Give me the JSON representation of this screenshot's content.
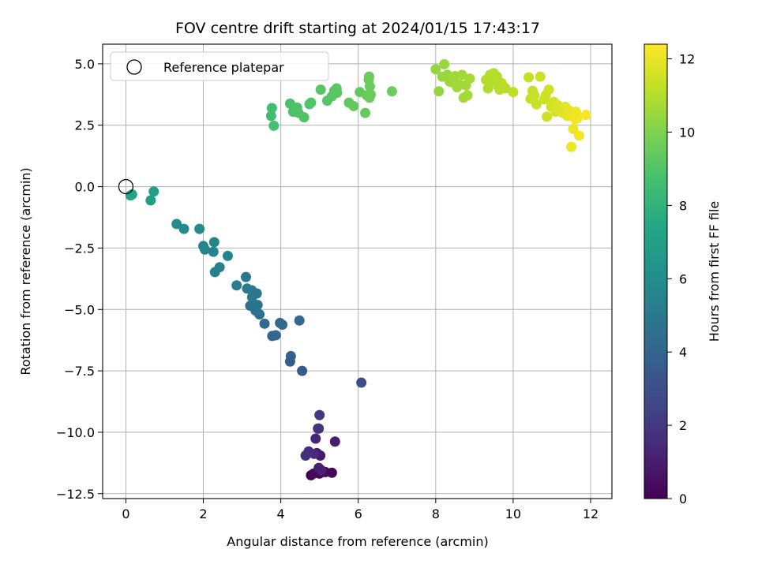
{
  "chart_data": {
    "type": "scatter",
    "title": "FOV centre drift starting at 2024/01/15 17:43:17",
    "xlabel": "Angular distance from reference (arcmin)",
    "ylabel": "Rotation from reference (arcmin)",
    "xlim": [
      -0.6,
      12.55
    ],
    "ylim": [
      -12.7,
      5.8
    ],
    "xticks": [
      0,
      2,
      4,
      6,
      8,
      10,
      12
    ],
    "xtick_labels": [
      "0",
      "2",
      "4",
      "6",
      "8",
      "10",
      "12"
    ],
    "yticks": [
      5.0,
      2.5,
      0.0,
      -2.5,
      -5.0,
      -7.5,
      -10.0,
      -12.5
    ],
    "ytick_labels": [
      "5.0",
      "2.5",
      "0.0",
      "−2.5",
      "−5.0",
      "−7.5",
      "−10.0",
      "−12.5"
    ],
    "grid": true,
    "legend": {
      "placement": "top-left",
      "entries": [
        "Reference platepar"
      ]
    },
    "reference_point": {
      "x": 0,
      "y": 0
    },
    "colorbar": {
      "label": "Hours from first FF file",
      "colormap": "viridis",
      "range": [
        0,
        12.4
      ],
      "ticks": [
        0,
        2,
        4,
        6,
        8,
        10,
        12
      ],
      "tick_labels": [
        "0",
        "2",
        "4",
        "6",
        "8",
        "10",
        "12"
      ]
    },
    "series": [
      {
        "x": [
          4.78,
          5.0,
          5.15,
          5.32,
          4.85,
          4.93,
          5.02,
          4.98,
          5.05,
          4.96,
          5.4,
          4.9,
          4.86,
          4.72,
          4.64,
          5.0,
          4.98,
          6.08,
          4.55,
          4.26,
          4.24,
          4.48,
          3.98,
          3.87,
          3.78,
          4.04,
          3.58,
          3.45,
          3.35,
          3.21,
          3.3,
          3.26,
          3.38,
          3.4,
          3.25,
          3.1,
          3.13,
          2.86,
          2.42,
          2.3,
          2.26,
          2.63,
          2.0,
          2.04,
          2.28,
          1.9,
          1.5,
          1.31,
          0.64,
          0.72,
          0.16,
          0.12,
          3.75,
          3.77,
          3.82,
          4.24,
          4.32,
          4.38,
          4.42,
          4.46,
          4.6,
          4.74,
          4.78,
          5.03,
          5.2,
          5.32,
          5.38,
          5.44,
          5.45,
          5.76,
          5.88,
          6.04,
          6.18,
          6.22,
          6.27,
          6.28,
          6.32,
          6.3,
          6.29,
          6.87,
          8.0,
          8.08,
          8.17,
          8.22,
          8.3,
          8.36,
          8.42,
          8.5,
          8.55,
          8.62,
          8.68,
          8.72,
          8.78,
          8.82,
          8.88,
          9.3,
          9.35,
          9.4,
          9.45,
          9.5,
          9.58,
          9.62,
          9.65,
          9.7,
          9.75,
          9.8,
          9.55,
          10.0,
          10.4,
          10.45,
          10.5,
          10.55,
          10.6,
          10.7,
          10.8,
          10.87,
          10.92,
          10.98,
          10.84,
          11.05,
          11.1,
          11.15,
          11.22,
          11.28,
          11.35,
          11.4,
          11.45,
          11.5,
          11.55,
          11.62,
          11.65,
          11.7,
          11.5,
          11.6,
          11.58,
          11.88
        ],
        "y": [
          -11.75,
          -11.68,
          -11.62,
          -11.65,
          -11.68,
          -10.85,
          -10.95,
          -11.45,
          -11.55,
          -9.85,
          -10.38,
          -10.26,
          -10.88,
          -10.78,
          -10.95,
          -9.3,
          -9.85,
          -7.98,
          -7.5,
          -6.9,
          -7.12,
          -5.45,
          -5.55,
          -6.05,
          -6.08,
          -5.62,
          -5.58,
          -5.2,
          -5.05,
          -4.85,
          -4.8,
          -4.5,
          -4.35,
          -4.82,
          -4.22,
          -3.68,
          -4.15,
          -4.02,
          -3.28,
          -3.48,
          -2.65,
          -2.82,
          -2.42,
          -2.56,
          -2.26,
          -1.72,
          -1.72,
          -1.52,
          -0.56,
          -0.2,
          -0.32,
          -0.36,
          2.88,
          3.2,
          2.48,
          3.38,
          3.05,
          3.18,
          3.22,
          3.0,
          2.82,
          3.36,
          3.42,
          3.95,
          3.5,
          3.68,
          3.9,
          4.0,
          3.82,
          3.42,
          3.28,
          3.85,
          3.0,
          3.72,
          4.35,
          4.48,
          3.75,
          4.08,
          3.62,
          3.88,
          4.78,
          3.88,
          4.48,
          4.98,
          4.55,
          4.28,
          4.25,
          4.5,
          4.05,
          4.15,
          4.55,
          3.62,
          4.12,
          3.72,
          4.4,
          4.35,
          4.0,
          4.55,
          4.38,
          4.62,
          4.48,
          4.05,
          3.95,
          4.22,
          4.08,
          4.0,
          4.25,
          3.85,
          4.45,
          3.58,
          3.9,
          3.72,
          3.35,
          4.48,
          3.55,
          2.85,
          3.95,
          3.25,
          3.72,
          3.45,
          3.05,
          3.32,
          3.18,
          3.0,
          3.25,
          2.88,
          3.1,
          2.92,
          2.35,
          3.05,
          2.78,
          2.08,
          1.62,
          2.75,
          2.9,
          2.92
        ],
        "hours": [
          0.0,
          0.1,
          0.15,
          0.2,
          0.3,
          0.8,
          0.9,
          1.0,
          1.1,
          1.4,
          1.0,
          1.3,
          1.5,
          1.6,
          1.7,
          2.0,
          1.8,
          3.0,
          3.5,
          3.7,
          3.6,
          4.2,
          4.1,
          4.0,
          4.0,
          4.3,
          4.3,
          4.5,
          4.6,
          4.7,
          4.8,
          4.9,
          4.8,
          4.7,
          4.9,
          5.0,
          5.0,
          5.2,
          5.4,
          5.4,
          5.5,
          5.6,
          5.5,
          5.6,
          5.6,
          5.9,
          6.0,
          6.1,
          6.9,
          7.0,
          7.2,
          7.1,
          8.6,
          8.6,
          8.7,
          8.8,
          8.8,
          8.9,
          8.9,
          8.9,
          8.95,
          9.0,
          9.0,
          9.1,
          9.1,
          9.15,
          9.2,
          9.2,
          9.2,
          9.3,
          9.35,
          9.4,
          9.45,
          9.45,
          9.5,
          9.5,
          9.5,
          9.5,
          9.5,
          9.6,
          10.4,
          10.4,
          10.45,
          10.5,
          10.5,
          10.55,
          10.55,
          10.6,
          10.6,
          10.65,
          10.65,
          10.7,
          10.7,
          10.7,
          10.75,
          10.9,
          10.9,
          10.95,
          10.95,
          11.0,
          11.0,
          11.05,
          11.05,
          11.1,
          11.1,
          11.1,
          11.0,
          11.2,
          11.3,
          11.35,
          11.35,
          11.4,
          11.4,
          11.45,
          11.5,
          11.5,
          11.55,
          11.55,
          11.5,
          11.6,
          11.65,
          11.7,
          11.75,
          11.8,
          11.85,
          11.9,
          11.95,
          12.0,
          12.05,
          12.1,
          12.15,
          12.2,
          12.1,
          12.2,
          12.15,
          12.3
        ]
      }
    ]
  }
}
